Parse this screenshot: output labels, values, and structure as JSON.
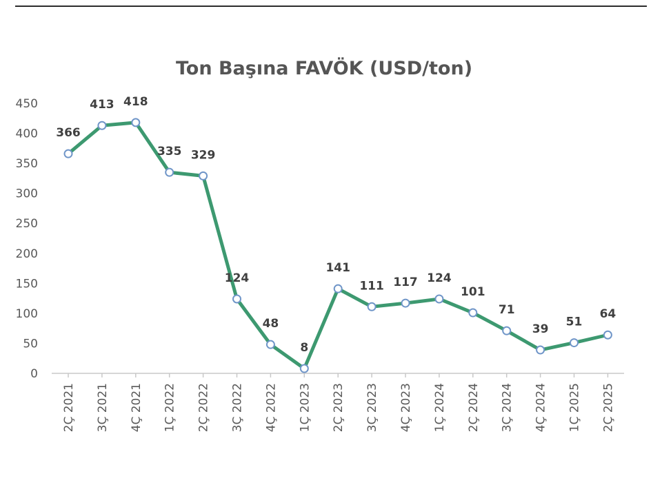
{
  "chart_data": {
    "type": "line",
    "title": "Ton Başına FAVÖK (USD/ton)",
    "xlabel": "",
    "ylabel": "",
    "categories": [
      "2Ç 2021",
      "3Ç 2021",
      "4Ç 2021",
      "1Ç 2022",
      "2Ç 2022",
      "3Ç 2022",
      "4Ç 2022",
      "1Ç 2023",
      "2Ç 2023",
      "3Ç 2023",
      "4Ç 2023",
      "1Ç 2024",
      "2Ç 2024",
      "3Ç 2024",
      "4Ç 2024",
      "1Ç 2025",
      "2Ç 2025"
    ],
    "series": [
      {
        "values": [
          366,
          413,
          418,
          335,
          329,
          124,
          48,
          8,
          141,
          111,
          117,
          124,
          101,
          71,
          39,
          51,
          64
        ]
      }
    ],
    "ylim": [
      0,
      450
    ],
    "yticks": [
      "0",
      "50",
      "100",
      "150",
      "200",
      "250",
      "300",
      "350",
      "400",
      "450"
    ],
    "grid": false,
    "legend": "none",
    "line_color": "#3d9970",
    "marker_stroke": "#6f95c8",
    "marker_fill": "#ffffff"
  }
}
